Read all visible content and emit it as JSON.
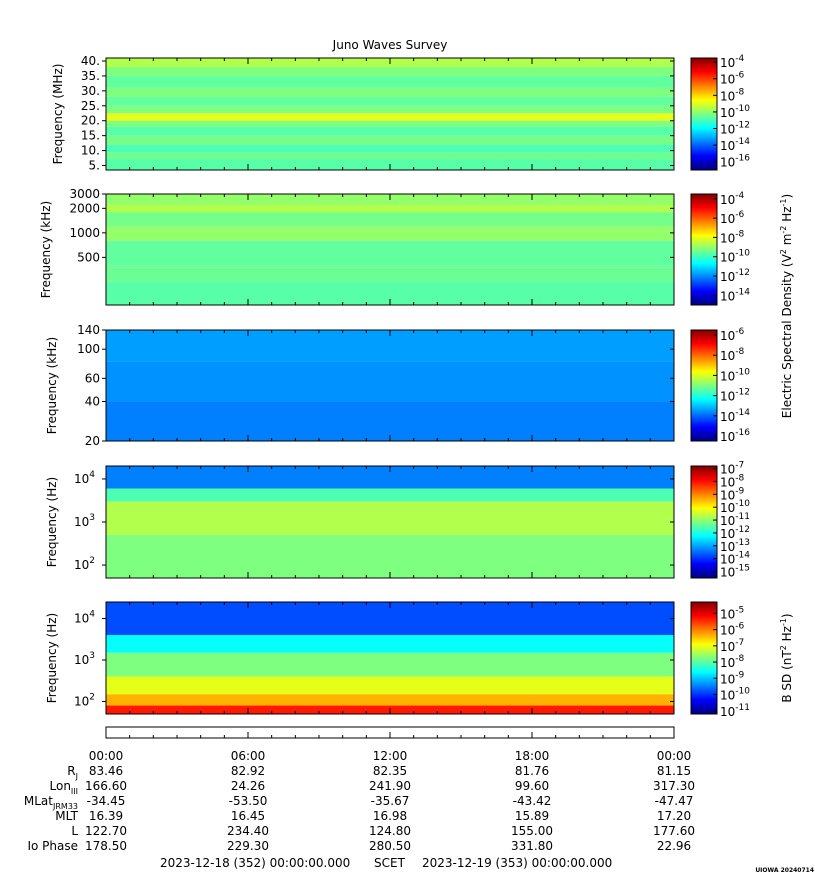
{
  "title": "Juno Waves Survey",
  "colors": {
    "colormap": [
      "#00007f",
      "#0000ff",
      "#007fff",
      "#00ffff",
      "#7fff7f",
      "#ffff00",
      "#ff7f00",
      "#ff0000",
      "#7f0000"
    ]
  },
  "chart_data": [
    {
      "type": "heatmap",
      "id": "mhz",
      "ylabel": "Frequency (MHz)",
      "yscale": "linear",
      "ylim": [
        3.5,
        41
      ],
      "yticks": [
        {
          "label": "40.",
          "value": 40
        },
        {
          "label": "35.",
          "value": 35
        },
        {
          "label": "30.",
          "value": 30
        },
        {
          "label": "25.",
          "value": 25
        },
        {
          "label": "20.",
          "value": 20
        },
        {
          "label": "15.",
          "value": 15
        },
        {
          "label": "10.",
          "value": 10
        },
        {
          "label": "5.",
          "value": 5
        }
      ],
      "bands": [
        {
          "from": 3.5,
          "to": 7,
          "level": 0.46
        },
        {
          "from": 7,
          "to": 9.5,
          "level": 0.48
        },
        {
          "from": 9.5,
          "to": 12,
          "level": 0.45
        },
        {
          "from": 12,
          "to": 15,
          "level": 0.49
        },
        {
          "from": 15,
          "to": 18,
          "level": 0.46
        },
        {
          "from": 18,
          "to": 20,
          "level": 0.5
        },
        {
          "from": 20,
          "to": 22.5,
          "level": 0.6
        },
        {
          "from": 22.5,
          "to": 25,
          "level": 0.5
        },
        {
          "from": 25,
          "to": 28,
          "level": 0.47
        },
        {
          "from": 28,
          "to": 31,
          "level": 0.5
        },
        {
          "from": 31,
          "to": 35,
          "level": 0.47
        },
        {
          "from": 35,
          "to": 38,
          "level": 0.5
        },
        {
          "from": 38,
          "to": 41,
          "level": 0.55
        }
      ],
      "colorbar": {
        "ticks": [
          {
            "label": "10",
            "exp": "-4"
          },
          {
            "label": "10",
            "exp": "-6"
          },
          {
            "label": "10",
            "exp": "-8"
          },
          {
            "label": "10",
            "exp": "-10"
          },
          {
            "label": "10",
            "exp": "-12"
          },
          {
            "label": "10",
            "exp": "-14"
          },
          {
            "label": "10",
            "exp": "-16"
          }
        ],
        "range": [
          -17,
          -3.5
        ]
      }
    },
    {
      "type": "heatmap",
      "id": "khz_high",
      "ylabel": "Frequency (kHz)",
      "yscale": "log",
      "ylim": [
        130,
        3000
      ],
      "yticks": [
        {
          "label": "3000",
          "value": 3000
        },
        {
          "label": "2000",
          "value": 2000
        },
        {
          "label": "1000",
          "value": 1000
        },
        {
          "label": "500",
          "value": 500
        }
      ],
      "bands": [
        {
          "from": 130,
          "to": 250,
          "level": 0.46
        },
        {
          "from": 250,
          "to": 400,
          "level": 0.48
        },
        {
          "from": 400,
          "to": 800,
          "level": 0.47
        },
        {
          "from": 800,
          "to": 1200,
          "level": 0.52
        },
        {
          "from": 1200,
          "to": 1800,
          "level": 0.49
        },
        {
          "from": 1800,
          "to": 2200,
          "level": 0.55
        },
        {
          "from": 2200,
          "to": 3000,
          "level": 0.52
        }
      ],
      "colorbar": {
        "ticks": [
          {
            "label": "10",
            "exp": "-4"
          },
          {
            "label": "10",
            "exp": "-6"
          },
          {
            "label": "10",
            "exp": "-8"
          },
          {
            "label": "10",
            "exp": "-10"
          },
          {
            "label": "10",
            "exp": "-12"
          },
          {
            "label": "10",
            "exp": "-14"
          }
        ],
        "range": [
          -15,
          -3.5
        ]
      }
    },
    {
      "type": "heatmap",
      "id": "khz_low",
      "ylabel": "Frequency (kHz)",
      "yscale": "log",
      "ylim": [
        20,
        140
      ],
      "yticks": [
        {
          "label": "140",
          "value": 140
        },
        {
          "label": "100",
          "value": 100
        },
        {
          "label": "60",
          "value": 60
        },
        {
          "label": "40",
          "value": 40
        },
        {
          "label": "20",
          "value": 20
        }
      ],
      "bands": [
        {
          "from": 20,
          "to": 40,
          "level": 0.25
        },
        {
          "from": 40,
          "to": 80,
          "level": 0.27
        },
        {
          "from": 80,
          "to": 140,
          "level": 0.28
        }
      ],
      "colorbar": {
        "ticks": [
          {
            "label": "10",
            "exp": "-6"
          },
          {
            "label": "10",
            "exp": "-8"
          },
          {
            "label": "10",
            "exp": "-10"
          },
          {
            "label": "10",
            "exp": "-12"
          },
          {
            "label": "10",
            "exp": "-14"
          },
          {
            "label": "10",
            "exp": "-16"
          }
        ],
        "range": [
          -16.5,
          -5.5
        ]
      }
    },
    {
      "type": "heatmap",
      "id": "hz_e",
      "ylabel": "Frequency (Hz)",
      "yscale": "log",
      "ylim": [
        50,
        20000
      ],
      "yticks": [
        {
          "label": "10",
          "exp": "4",
          "value": 10000
        },
        {
          "label": "10",
          "exp": "3",
          "value": 1000
        },
        {
          "label": "10",
          "exp": "2",
          "value": 100
        }
      ],
      "bands": [
        {
          "from": 50,
          "to": 500,
          "level": 0.5
        },
        {
          "from": 500,
          "to": 900,
          "level": 0.55
        },
        {
          "from": 900,
          "to": 3000,
          "level": 0.55
        },
        {
          "from": 3000,
          "to": 6000,
          "level": 0.45
        },
        {
          "from": 6000,
          "to": 20000,
          "level": 0.25
        }
      ],
      "colorbar": {
        "ticks": [
          {
            "label": "10",
            "exp": "-7"
          },
          {
            "label": "10",
            "exp": "-8"
          },
          {
            "label": "10",
            "exp": "-9"
          },
          {
            "label": "10",
            "exp": "-10"
          },
          {
            "label": "10",
            "exp": "-11"
          },
          {
            "label": "10",
            "exp": "-12"
          },
          {
            "label": "10",
            "exp": "-13"
          },
          {
            "label": "10",
            "exp": "-14"
          },
          {
            "label": "10",
            "exp": "-15"
          }
        ],
        "range": [
          -15.5,
          -6.8
        ]
      }
    },
    {
      "type": "heatmap",
      "id": "hz_b",
      "ylabel": "Frequency (Hz)",
      "yscale": "log",
      "ylim": [
        50,
        25000
      ],
      "yticks": [
        {
          "label": "10",
          "exp": "4",
          "value": 10000
        },
        {
          "label": "10",
          "exp": "3",
          "value": 1000
        },
        {
          "label": "10",
          "exp": "2",
          "value": 100
        }
      ],
      "bands": [
        {
          "from": 50,
          "to": 80,
          "level": 0.85
        },
        {
          "from": 80,
          "to": 150,
          "level": 0.7
        },
        {
          "from": 150,
          "to": 400,
          "level": 0.6
        },
        {
          "from": 400,
          "to": 1500,
          "level": 0.5
        },
        {
          "from": 1500,
          "to": 4000,
          "level": 0.38
        },
        {
          "from": 4000,
          "to": 25000,
          "level": 0.2
        }
      ],
      "colorbar": {
        "ticks": [
          {
            "label": "10",
            "exp": "-5"
          },
          {
            "label": "10",
            "exp": "-6"
          },
          {
            "label": "10",
            "exp": "-7"
          },
          {
            "label": "10",
            "exp": "-8"
          },
          {
            "label": "10",
            "exp": "-9"
          },
          {
            "label": "10",
            "exp": "-10"
          },
          {
            "label": "10",
            "exp": "-11"
          }
        ],
        "range": [
          -11.2,
          -4.3
        ]
      }
    }
  ],
  "colorbar_label_e": "Electric Spectral Density (V",
  "colorbar_label_e_sup1": "2",
  "colorbar_label_e_mid": " m",
  "colorbar_label_e_sup2": "-2",
  "colorbar_label_e_mid2": " Hz",
  "colorbar_label_e_sup3": "-1",
  "colorbar_label_e_end": ")",
  "colorbar_label_b": "B SD (nT",
  "colorbar_label_b_sup1": "2",
  "colorbar_label_b_mid": " Hz",
  "colorbar_label_b_sup2": "-1",
  "colorbar_label_b_end": ")",
  "ephemeris": {
    "times": [
      "00:00",
      "06:00",
      "12:00",
      "18:00",
      "00:00"
    ],
    "rows": [
      {
        "label": "R",
        "sub": "J",
        "values": [
          "83.46",
          "82.92",
          "82.35",
          "81.76",
          "81.15"
        ]
      },
      {
        "label": "Lon",
        "sub": "III",
        "values": [
          "166.60",
          "24.26",
          "241.90",
          "99.60",
          "317.30"
        ]
      },
      {
        "label": "MLat",
        "sub": "JRM33",
        "values": [
          "-34.45",
          "-53.50",
          "-35.67",
          "-43.42",
          "-47.47"
        ]
      },
      {
        "label": "MLT",
        "sub": "",
        "values": [
          "16.39",
          "16.45",
          "16.98",
          "15.89",
          "17.20"
        ]
      },
      {
        "label": "L",
        "sub": "",
        "values": [
          "122.70",
          "234.40",
          "124.80",
          "155.00",
          "177.60"
        ]
      },
      {
        "label": "Io Phase",
        "sub": "",
        "values": [
          "178.50",
          "229.30",
          "280.50",
          "331.80",
          "22.96"
        ]
      }
    ]
  },
  "footer": {
    "start": "2023-12-18 (352) 00:00:00.000",
    "scet": "SCET",
    "end": "2023-12-19 (353) 00:00:00.000"
  },
  "credit": "UIOWA 20240714"
}
